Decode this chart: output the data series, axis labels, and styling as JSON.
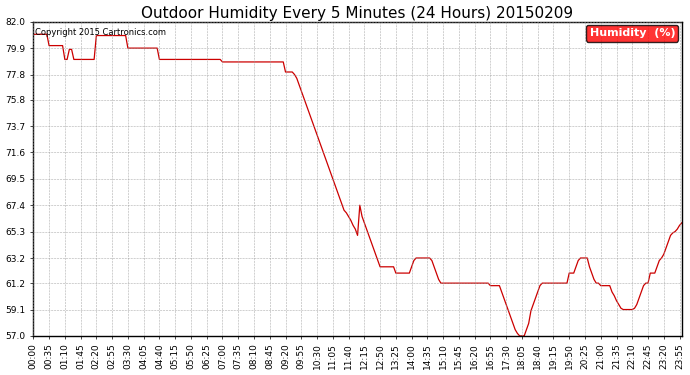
{
  "title": "Outdoor Humidity Every 5 Minutes (24 Hours) 20150209",
  "copyright_text": "Copyright 2015 Cartronics.com",
  "legend_label": "Humidity  (%)",
  "line_color": "#cc0000",
  "background_color": "#ffffff",
  "grid_color": "#999999",
  "ylim": [
    57.0,
    82.0
  ],
  "yticks": [
    57.0,
    59.1,
    61.2,
    63.2,
    65.3,
    67.4,
    69.5,
    71.6,
    73.7,
    75.8,
    77.8,
    79.9,
    82.0
  ],
  "humidity_data": [
    81.0,
    81.0,
    81.0,
    81.0,
    81.0,
    81.0,
    81.0,
    80.1,
    80.1,
    80.1,
    80.1,
    80.1,
    80.1,
    80.1,
    79.0,
    79.0,
    79.8,
    79.8,
    79.0,
    79.0,
    79.0,
    79.0,
    79.0,
    79.0,
    79.0,
    79.0,
    79.0,
    79.0,
    80.9,
    80.9,
    80.9,
    80.9,
    80.9,
    80.9,
    80.9,
    80.9,
    80.9,
    80.9,
    80.9,
    80.9,
    80.9,
    80.9,
    79.9,
    79.9,
    79.9,
    79.9,
    79.9,
    79.9,
    79.9,
    79.9,
    79.9,
    79.9,
    79.9,
    79.9,
    79.9,
    79.9,
    79.0,
    79.0,
    79.0,
    79.0,
    79.0,
    79.0,
    79.0,
    79.0,
    79.0,
    79.0,
    79.0,
    79.0,
    79.0,
    79.0,
    79.0,
    79.0,
    79.0,
    79.0,
    79.0,
    79.0,
    79.0,
    79.0,
    79.0,
    79.0,
    79.0,
    79.0,
    79.0,
    79.0,
    78.8,
    78.8,
    78.8,
    78.8,
    78.8,
    78.8,
    78.8,
    78.8,
    78.8,
    78.8,
    78.8,
    78.8,
    78.8,
    78.8,
    78.8,
    78.8,
    78.8,
    78.8,
    78.8,
    78.8,
    78.8,
    78.8,
    78.8,
    78.8,
    78.8,
    78.8,
    78.8,
    78.8,
    78.0,
    78.0,
    78.0,
    78.0,
    77.8,
    77.5,
    77.0,
    76.5,
    76.0,
    75.5,
    75.0,
    74.5,
    74.0,
    73.5,
    73.0,
    72.5,
    72.0,
    71.5,
    71.0,
    70.5,
    70.0,
    69.5,
    69.0,
    68.5,
    68.0,
    67.5,
    67.0,
    66.8,
    66.5,
    66.2,
    65.8,
    65.5,
    65.0,
    67.4,
    66.5,
    66.0,
    65.5,
    65.0,
    64.5,
    64.0,
    63.5,
    63.0,
    62.5,
    62.5,
    62.5,
    62.5,
    62.5,
    62.5,
    62.5,
    62.0,
    62.0,
    62.0,
    62.0,
    62.0,
    62.0,
    62.0,
    62.5,
    63.0,
    63.2,
    63.2,
    63.2,
    63.2,
    63.2,
    63.2,
    63.2,
    63.0,
    62.5,
    62.0,
    61.5,
    61.2,
    61.2,
    61.2,
    61.2,
    61.2,
    61.2,
    61.2,
    61.2,
    61.2,
    61.2,
    61.2,
    61.2,
    61.2,
    61.2,
    61.2,
    61.2,
    61.2,
    61.2,
    61.2,
    61.2,
    61.2,
    61.2,
    61.0,
    61.0,
    61.0,
    61.0,
    61.0,
    60.5,
    60.0,
    59.5,
    59.0,
    58.5,
    58.0,
    57.5,
    57.2,
    57.0,
    57.0,
    57.0,
    57.5,
    58.0,
    59.0,
    59.5,
    60.0,
    60.5,
    61.0,
    61.2,
    61.2,
    61.2,
    61.2,
    61.2,
    61.2,
    61.2,
    61.2,
    61.2,
    61.2,
    61.2,
    61.2,
    62.0,
    62.0,
    62.0,
    62.5,
    63.0,
    63.2,
    63.2,
    63.2,
    63.2,
    62.5,
    62.0,
    61.5,
    61.2,
    61.2,
    61.0,
    61.0,
    61.0,
    61.0,
    61.0,
    60.5,
    60.2,
    59.8,
    59.5,
    59.2,
    59.1,
    59.1,
    59.1,
    59.1,
    59.1,
    59.2,
    59.5,
    60.0,
    60.5,
    61.0,
    61.2,
    61.2,
    62.0,
    62.0,
    62.0,
    62.5,
    63.0,
    63.2,
    63.5,
    64.0,
    64.5,
    65.0,
    65.2,
    65.3,
    65.5,
    65.8,
    66.0
  ],
  "x_tick_interval": 7,
  "title_fontsize": 11,
  "tick_fontsize": 6.5,
  "legend_fontsize": 8,
  "fig_width": 6.9,
  "fig_height": 3.75,
  "dpi": 100
}
